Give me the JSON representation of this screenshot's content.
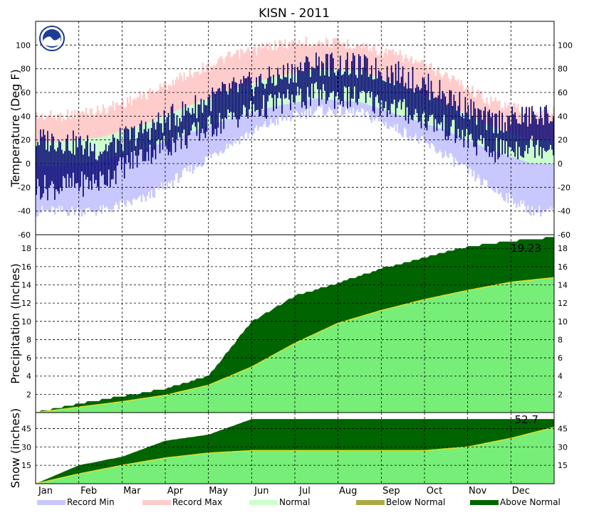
{
  "chart_data": {
    "type": "area",
    "title": "KISN - 2011",
    "months": [
      "Jan",
      "Feb",
      "Mar",
      "Apr",
      "May",
      "Jun",
      "Jul",
      "Aug",
      "Sep",
      "Oct",
      "Nov",
      "Dec"
    ],
    "colors": {
      "record_min": "#c8c8ff",
      "record_max": "#ffcccc",
      "normal": "#ccffcc",
      "observed_temp": "#000070",
      "normal_precip": "#77ee77",
      "above_normal": "#006400",
      "below_normal": "#aaaa44"
    },
    "legend": [
      {
        "key": "record_min",
        "label": "Record Min"
      },
      {
        "key": "record_max",
        "label": "Record Max"
      },
      {
        "key": "normal",
        "label": "Normal"
      },
      {
        "key": "below_normal",
        "label": "Below Normal"
      },
      {
        "key": "above_normal",
        "label": "Above Normal"
      }
    ],
    "temperature": {
      "ylabel": "Temperature (Deg F)",
      "ylim": [
        -60,
        120
      ],
      "yticks": [
        -60,
        -40,
        -20,
        0,
        20,
        40,
        60,
        80,
        100
      ],
      "record_max": [
        45,
        50,
        62,
        80,
        95,
        105,
        108,
        105,
        95,
        80,
        58,
        48
      ],
      "normal_high": [
        18,
        22,
        33,
        48,
        62,
        73,
        80,
        78,
        65,
        50,
        32,
        20
      ],
      "normal_low": [
        -2,
        2,
        12,
        25,
        38,
        48,
        55,
        52,
        40,
        28,
        12,
        0
      ],
      "record_min": [
        -45,
        -45,
        -35,
        -12,
        12,
        30,
        40,
        38,
        22,
        2,
        -25,
        -45
      ],
      "observed_high": [
        20,
        12,
        28,
        45,
        62,
        72,
        85,
        82,
        75,
        58,
        35,
        40
      ],
      "observed_low": [
        -20,
        -15,
        8,
        22,
        38,
        50,
        58,
        55,
        45,
        30,
        10,
        15
      ]
    },
    "precipitation": {
      "ylabel": "Precipitation (Inches)",
      "ylim": [
        0,
        19.5
      ],
      "yticks": [
        2,
        4,
        6,
        8,
        10,
        12,
        14,
        16,
        18
      ],
      "total_label": "19.23",
      "normal_cumulative": [
        0,
        0.6,
        1.2,
        1.9,
        3.0,
        5.0,
        7.6,
        9.8,
        11.2,
        12.4,
        13.4,
        14.3,
        14.8
      ],
      "observed_cumulative": [
        0,
        1.0,
        1.8,
        2.6,
        4.0,
        10.0,
        12.8,
        14.2,
        15.8,
        17.0,
        18.2,
        18.8,
        19.23
      ]
    },
    "snow": {
      "ylabel": "Snow (inches)",
      "ylim": [
        0,
        58
      ],
      "yticks": [
        15,
        30,
        45
      ],
      "total_label": "52.7",
      "normal_cumulative": [
        0,
        8,
        15,
        21,
        25,
        27,
        27,
        27,
        27,
        27,
        30,
        37,
        46
      ],
      "observed_cumulative": [
        0,
        15,
        22,
        35,
        40,
        52.7,
        52.7,
        52.7,
        52.7,
        52.7,
        52.7,
        52.7,
        52.7
      ]
    }
  }
}
